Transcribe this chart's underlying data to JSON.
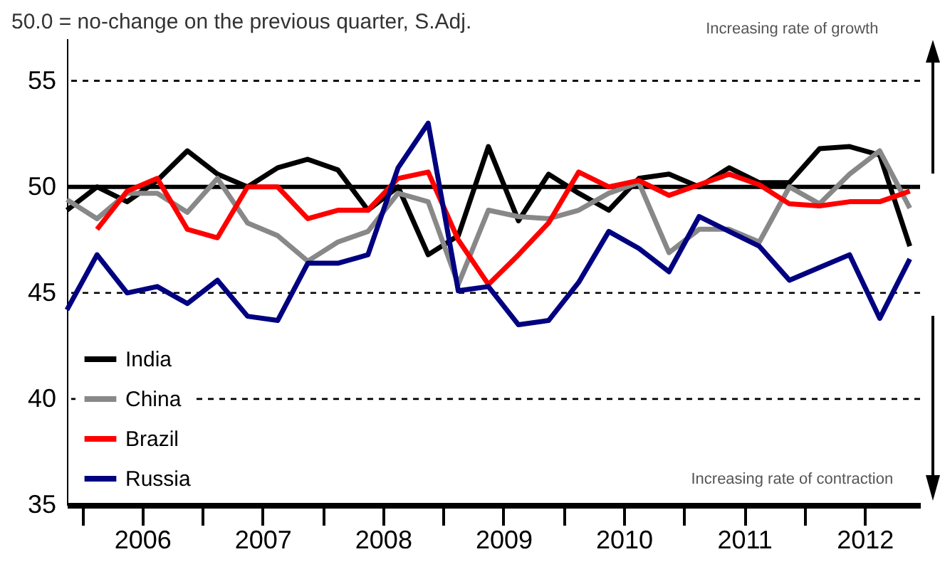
{
  "chart_data": {
    "type": "line",
    "title": "50.0 = no-change on the previous quarter, S.Adj.",
    "x": [
      2005.875,
      2006.125,
      2006.375,
      2006.625,
      2006.875,
      2007.125,
      2007.375,
      2007.625,
      2007.875,
      2008.125,
      2008.375,
      2008.625,
      2008.875,
      2009.125,
      2009.375,
      2009.625,
      2009.875,
      2010.125,
      2010.375,
      2010.625,
      2010.875,
      2011.125,
      2011.375,
      2011.625,
      2011.875,
      2012.125,
      2012.375,
      2012.625,
      2012.875
    ],
    "series": [
      {
        "name": "India",
        "color": "#000000",
        "values": [
          48.9,
          50.0,
          49.3,
          50.3,
          51.7,
          50.6,
          50.0,
          50.9,
          51.3,
          50.8,
          48.9,
          50.0,
          46.8,
          47.7,
          51.9,
          48.4,
          50.6,
          49.7,
          48.9,
          50.4,
          50.6,
          50.0,
          50.9,
          50.2,
          50.2,
          51.8,
          51.9,
          51.5,
          47.2
        ]
      },
      {
        "name": "China",
        "color": "#888888",
        "values": [
          49.4,
          48.5,
          49.7,
          49.7,
          48.8,
          50.4,
          48.3,
          47.7,
          46.5,
          47.4,
          47.9,
          49.7,
          49.3,
          45.4,
          48.9,
          48.6,
          48.5,
          48.9,
          49.7,
          50.2,
          46.9,
          48.0,
          48.0,
          47.4,
          50.0,
          49.2,
          50.6,
          51.7,
          49.0
        ]
      },
      {
        "name": "Brazil",
        "color": "#ff0000",
        "values": [
          null,
          48.0,
          49.8,
          50.4,
          48.0,
          47.6,
          50.0,
          50.0,
          48.5,
          48.9,
          48.9,
          50.4,
          50.7,
          47.5,
          45.4,
          46.8,
          48.3,
          50.7,
          50.0,
          50.3,
          49.6,
          50.1,
          50.6,
          50.1,
          49.2,
          49.1,
          49.3,
          49.3,
          49.8
        ]
      },
      {
        "name": "Russia",
        "color": "#000080",
        "values": [
          44.2,
          46.8,
          45.0,
          45.3,
          44.5,
          45.6,
          43.9,
          43.7,
          46.4,
          46.4,
          46.8,
          50.9,
          53.0,
          45.1,
          45.3,
          43.5,
          43.7,
          45.5,
          47.9,
          47.1,
          46.0,
          48.6,
          47.9,
          47.2,
          45.6,
          46.2,
          46.8,
          43.8,
          46.6
        ]
      }
    ],
    "xlim": [
      2005.875,
      2012.96
    ],
    "xticks": [
      {
        "value": 2006,
        "label": null
      },
      {
        "value": 2006.5,
        "label": "2006"
      },
      {
        "value": 2007,
        "label": null
      },
      {
        "value": 2007.5,
        "label": "2007"
      },
      {
        "value": 2008,
        "label": null
      },
      {
        "value": 2008.5,
        "label": "2008"
      },
      {
        "value": 2009,
        "label": null
      },
      {
        "value": 2009.5,
        "label": "2009"
      },
      {
        "value": 2010,
        "label": null
      },
      {
        "value": 2010.5,
        "label": "2010"
      },
      {
        "value": 2011,
        "label": null
      },
      {
        "value": 2011.5,
        "label": "2011"
      },
      {
        "value": 2012,
        "label": null
      },
      {
        "value": 2012.5,
        "label": "2012"
      }
    ],
    "ylim": [
      35,
      57
    ],
    "yticks": [
      35,
      40,
      45,
      50,
      55
    ],
    "ref_lines": [
      {
        "axis": "y",
        "value": 55,
        "line_style": "dashed",
        "color": "#000000"
      },
      {
        "axis": "y",
        "value": 50,
        "line_style": "solid",
        "color": "#000000"
      },
      {
        "axis": "y",
        "value": 45,
        "line_style": "dashed",
        "color": "#000000"
      },
      {
        "axis": "y",
        "value": 40,
        "line_style": "dashed",
        "color": "#000000"
      }
    ],
    "annotations": [
      "Increasing rate of growth",
      "Increasing rate of contraction"
    ],
    "legend": "bottom left",
    "grid": false,
    "line_style": "solid",
    "marker": "none"
  }
}
